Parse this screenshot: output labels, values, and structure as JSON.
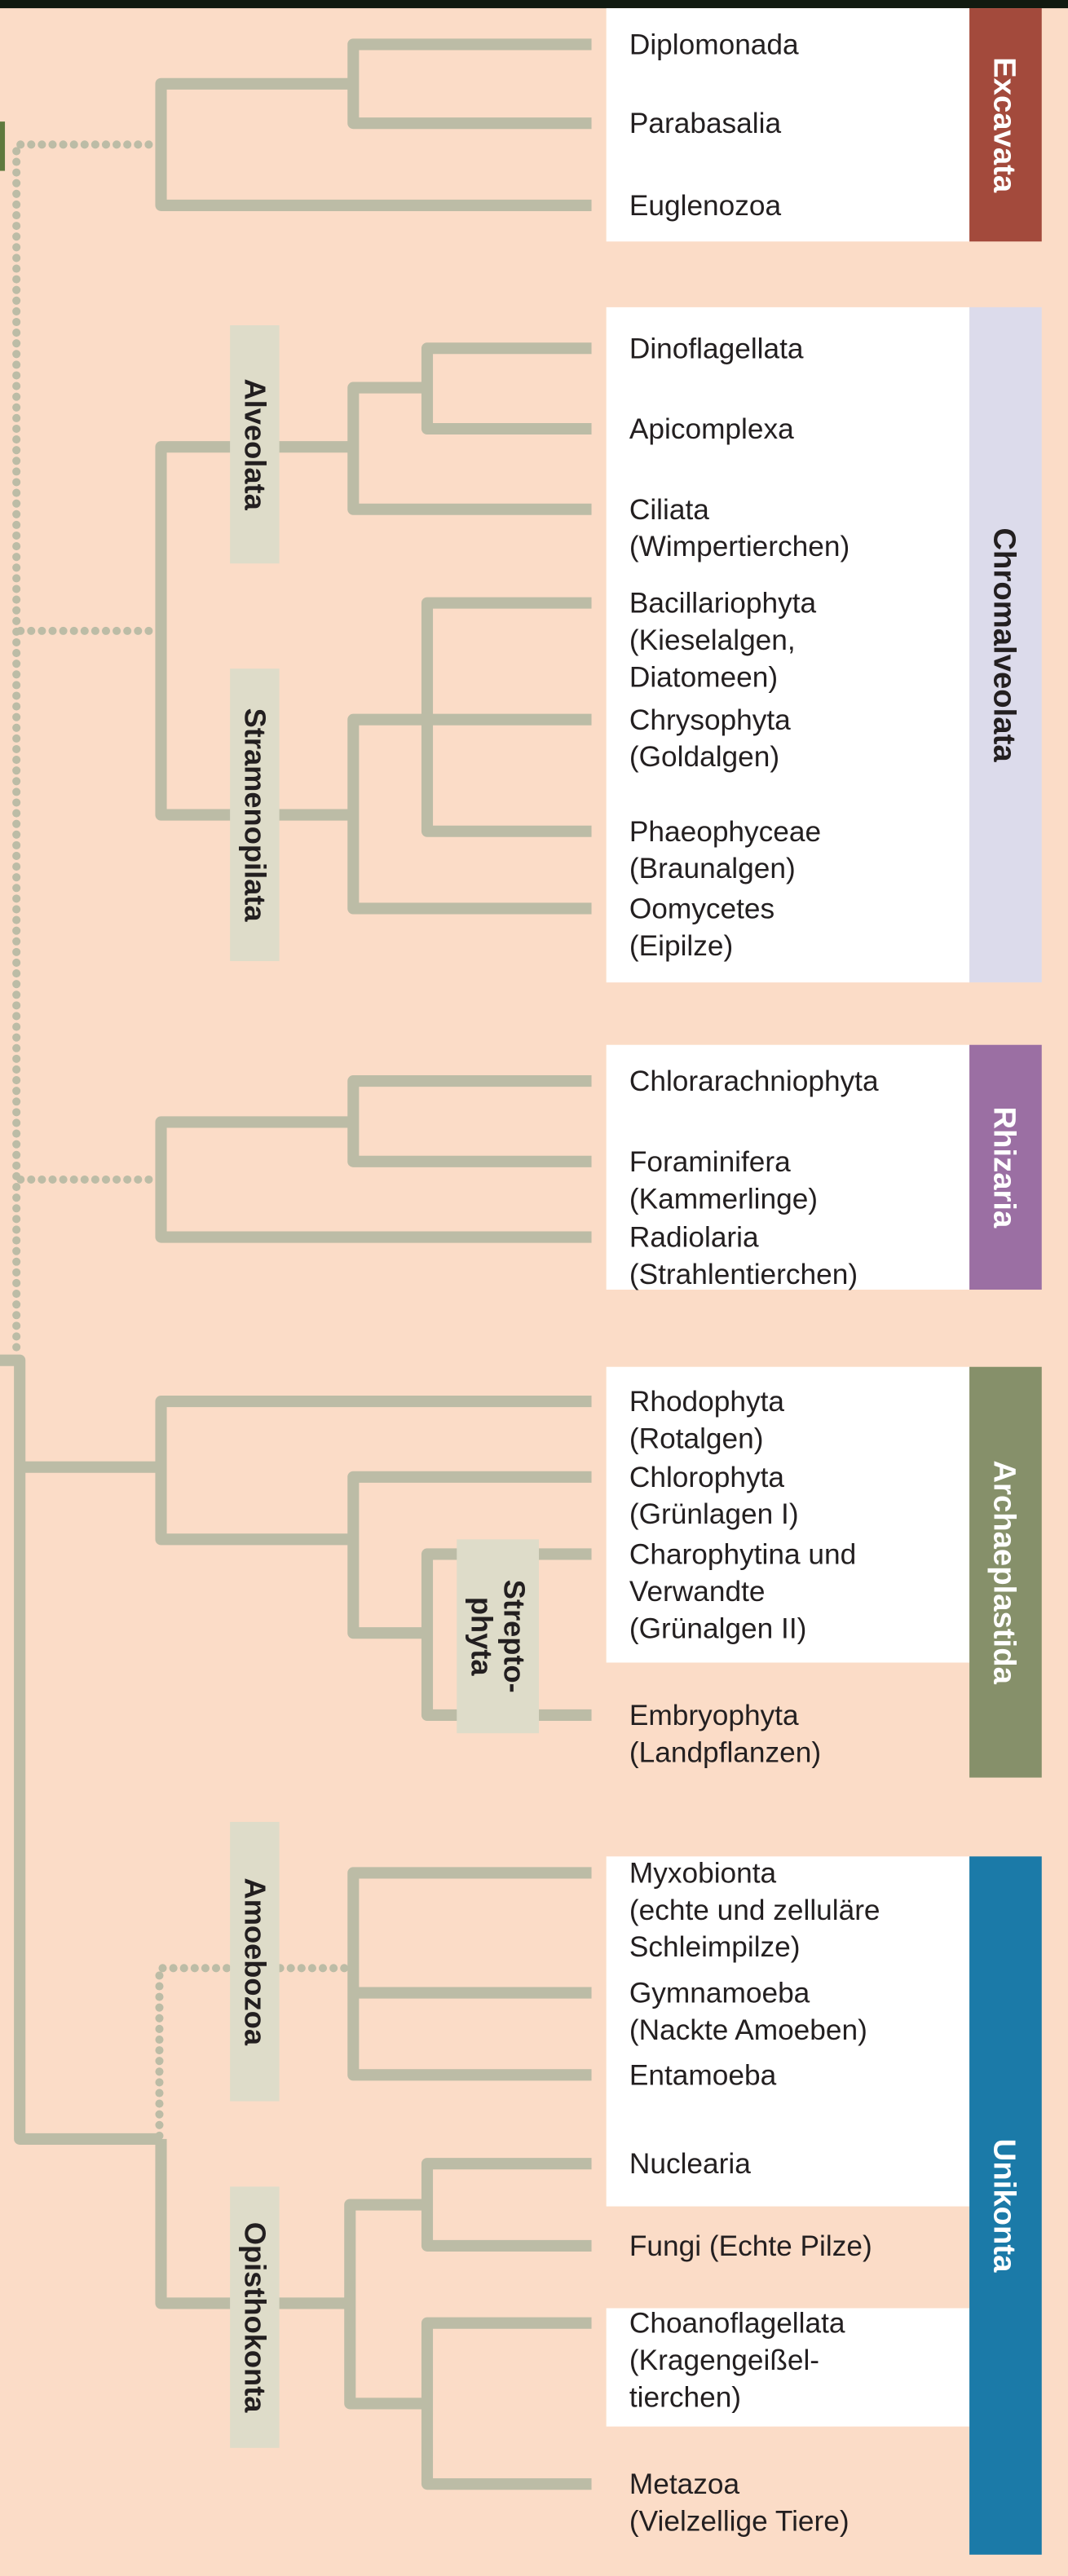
{
  "colors": {
    "background": "#fbdcc7",
    "branch": "#bcbca6",
    "clade_label_bg": "#dedcc9"
  },
  "supergroups": [
    {
      "name": "Excavata",
      "color": "#a34a3c",
      "text_color": "#ffffff",
      "leaves": [
        [
          "Diplomonada"
        ],
        [
          "Parabasalia"
        ],
        [
          "Euglenozoa"
        ]
      ]
    },
    {
      "name": "Chromalveolata",
      "color": "#dcdbeb",
      "text_color": "#231f20",
      "leaves": [
        [
          "Dinoflagellata"
        ],
        [
          "Apicomplexa"
        ],
        [
          "Ciliata",
          "(Wimpertierchen)"
        ],
        [
          "Bacillariophyta",
          "(Kieselalgen,",
          "Diatomeen)"
        ],
        [
          "Chrysophyta",
          "(Goldalgen)"
        ],
        [
          "Phaeophyceae",
          "(Braunalgen)"
        ],
        [
          "Oomycetes",
          "(Eipilze)"
        ]
      ]
    },
    {
      "name": "Rhizaria",
      "color": "#9b6fa3",
      "text_color": "#ffffff",
      "leaves": [
        [
          "Chlorarachniophyta"
        ],
        [
          "Foraminifera",
          "(Kammerlinge)"
        ],
        [
          "Radiolaria",
          "(Strahlentierchen)"
        ]
      ]
    },
    {
      "name": "Archaeplastida",
      "color": "#86906a",
      "text_color": "#ffffff",
      "leaves": [
        [
          "Rhodophyta",
          "(Rotalgen)"
        ],
        [
          "Chlorophyta",
          "(Grünlagen I)"
        ],
        [
          "Charophytina und",
          "Verwandte",
          "(Grünalgen II)"
        ],
        [
          "Embryophyta",
          "(Landpflanzen)"
        ]
      ]
    },
    {
      "name": "Unikonta",
      "color": "#1b7aa8",
      "text_color": "#ffffff",
      "leaves": [
        [
          "Myxobionta",
          "(echte und zelluläre",
          "Schleimpilze)"
        ],
        [
          "Gymnamoeba",
          "(Nackte Amoeben)"
        ],
        [
          "Entamoeba"
        ],
        [
          "Nuclearia"
        ],
        [
          "Fungi (Echte Pilze)"
        ],
        [
          "Choanoflagellata",
          "(Kragengeißel-",
          "tierchen)"
        ],
        [
          "Metazoa",
          "(Vielzellige Tiere)"
        ]
      ]
    }
  ],
  "clades": [
    {
      "lines": [
        "Alveolata"
      ]
    },
    {
      "lines": [
        "Stramenopilata"
      ]
    },
    {
      "lines": [
        "Strepto-",
        "phyta"
      ]
    },
    {
      "lines": [
        "Amoebozoa"
      ]
    },
    {
      "lines": [
        "Opisthokonta"
      ]
    }
  ]
}
